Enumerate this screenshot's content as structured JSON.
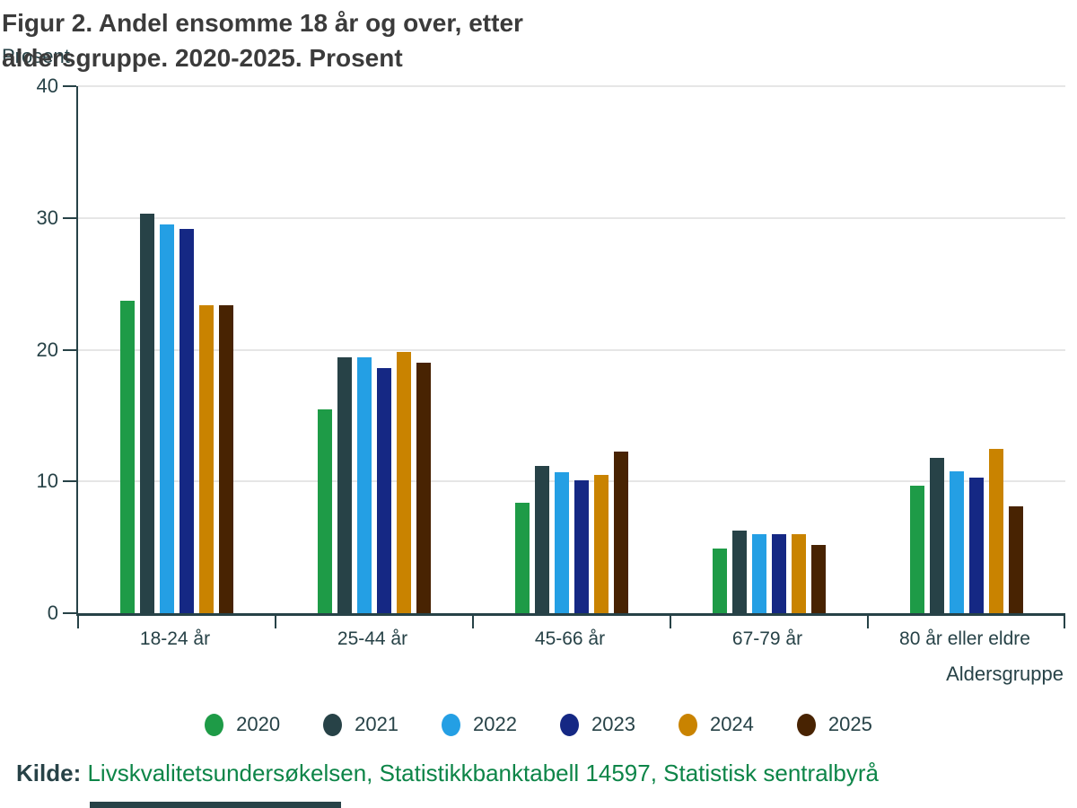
{
  "title": {
    "line1": "Figur 2. Andel ensomme 18 år og over, etter",
    "line2": "aldersgruppe. 2020-2025. Prosent"
  },
  "y_axis_title": "Prosent",
  "x_axis_title": "Aldersgruppe",
  "source": {
    "label": "Kilde:",
    "text": "Livskvalitetsundersøkelsen, Statistikkbanktabell 14597, Statistisk sentralbyrå"
  },
  "colors": {
    "axis": "#274247",
    "gridline": "#e6e6e6",
    "title_text": "#3b3b3b",
    "axis_text": "#274247",
    "source_text_green": "#0d8548"
  },
  "chart_data": {
    "type": "bar",
    "title": "Figur 2. Andel ensomme 18 år og over, etter aldersgruppe. 2020-2025. Prosent",
    "xlabel": "Aldersgruppe",
    "ylabel": "Prosent",
    "ylim": [
      0,
      40
    ],
    "yticks": [
      0,
      10,
      20,
      30,
      40
    ],
    "grid": true,
    "legend_position": "bottom",
    "categories": [
      "18-24 år",
      "25-44 år",
      "45-66 år",
      "67-79 år",
      "80 år eller eldre"
    ],
    "series": [
      {
        "name": "2020",
        "color": "#1e9b47",
        "values": [
          23.7,
          15.5,
          8.4,
          4.9,
          9.7
        ]
      },
      {
        "name": "2021",
        "color": "#274247",
        "values": [
          30.3,
          19.4,
          11.2,
          6.3,
          11.8
        ]
      },
      {
        "name": "2022",
        "color": "#249fe4",
        "values": [
          29.5,
          19.4,
          10.7,
          6.0,
          10.8
        ]
      },
      {
        "name": "2023",
        "color": "#152884",
        "values": [
          29.2,
          18.6,
          10.1,
          6.0,
          10.3
        ]
      },
      {
        "name": "2024",
        "color": "#c98300",
        "values": [
          23.4,
          19.8,
          10.5,
          6.0,
          12.5
        ]
      },
      {
        "name": "2025",
        "color": "#482302",
        "values": [
          23.4,
          19.0,
          12.3,
          5.2,
          8.1
        ]
      }
    ]
  }
}
